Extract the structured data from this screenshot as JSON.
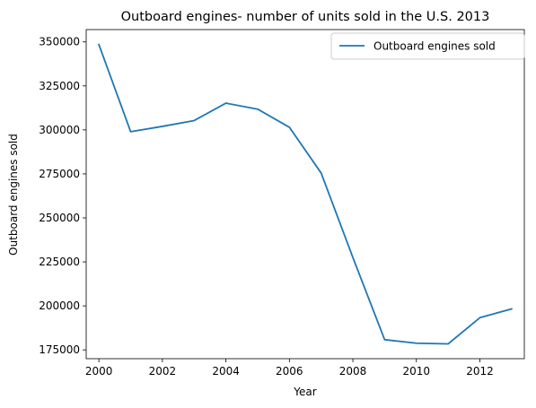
{
  "chart_data": {
    "type": "line",
    "title": "Outboard engines- number of units sold in the U.S. 2013",
    "xlabel": "Year",
    "ylabel": "Outboard engines sold",
    "x": [
      2000,
      2001,
      2002,
      2003,
      2004,
      2005,
      2006,
      2007,
      2008,
      2009,
      2010,
      2011,
      2012,
      2013
    ],
    "series": [
      {
        "name": "Outboard engines sold",
        "color": "#1f77b4",
        "values": [
          348500,
          299000,
          302000,
          305300,
          315200,
          311800,
          301500,
          275500,
          227500,
          180800,
          178800,
          178400,
          193300,
          198300
        ]
      }
    ],
    "xlim": [
      1999.6,
      2013.4
    ],
    "ylim": [
      170000,
      357000
    ],
    "x_ticks": [
      2000,
      2002,
      2004,
      2006,
      2008,
      2010,
      2012
    ],
    "y_ticks": [
      175000,
      200000,
      225000,
      250000,
      275000,
      300000,
      325000,
      350000
    ],
    "grid": false,
    "legend_position": "top-right"
  }
}
